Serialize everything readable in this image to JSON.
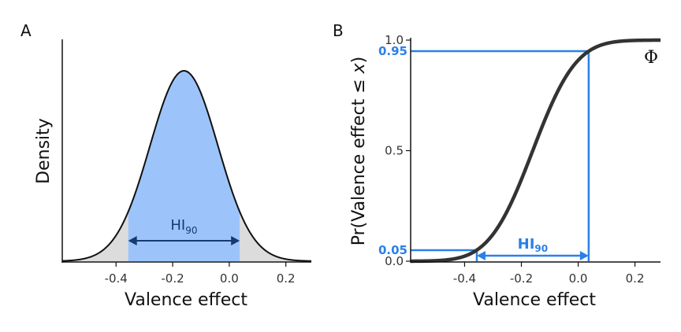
{
  "colors": {
    "interval_fill": "#9cc4fb",
    "tail_fill": "#dcdcdc",
    "curve": "#333333",
    "arrow_a": "#173a73",
    "accent_b": "#2b80e8"
  },
  "chart_data": [
    {
      "panel": "A",
      "type": "area",
      "distribution": {
        "family": "normal",
        "mean": -0.16,
        "sd": 0.12
      },
      "xlabel": "Valence effect",
      "ylabel": "Density",
      "xlim": [
        -0.59,
        0.29
      ],
      "x_ticks": [
        "-0.4",
        "-0.2",
        "0.0",
        "0.2"
      ],
      "x_tick_values": [
        -0.4,
        -0.2,
        0.0,
        0.2
      ],
      "interval": {
        "label_main": "HI",
        "label_sub": "90",
        "lower": -0.357,
        "upper": 0.037
      },
      "grid": false
    },
    {
      "panel": "B",
      "type": "line",
      "distribution": {
        "family": "normal_cdf",
        "mean": -0.16,
        "sd": 0.12
      },
      "xlabel": "Valence effect",
      "ylabel_prefix": "Pr(Valence effect ≤ ",
      "ylabel_var": "x",
      "ylabel_suffix": ")",
      "xlim": [
        -0.59,
        0.29
      ],
      "ylim": [
        0.0,
        1.0
      ],
      "x_ticks": [
        "-0.4",
        "-0.2",
        "0.0",
        "0.2"
      ],
      "x_tick_values": [
        -0.4,
        -0.2,
        0.0,
        0.2
      ],
      "y_ticks": [
        "0.0",
        "0.5",
        "1.0"
      ],
      "y_tick_values": [
        0.0,
        0.5,
        1.0
      ],
      "highlight_ticks": [
        "0.05",
        "0.95"
      ],
      "highlight_values": [
        0.05,
        0.95
      ],
      "curve_label": "Φ",
      "interval": {
        "label_main": "HI",
        "label_sub": "90",
        "lower": -0.357,
        "upper": 0.037
      },
      "grid": false
    }
  ]
}
